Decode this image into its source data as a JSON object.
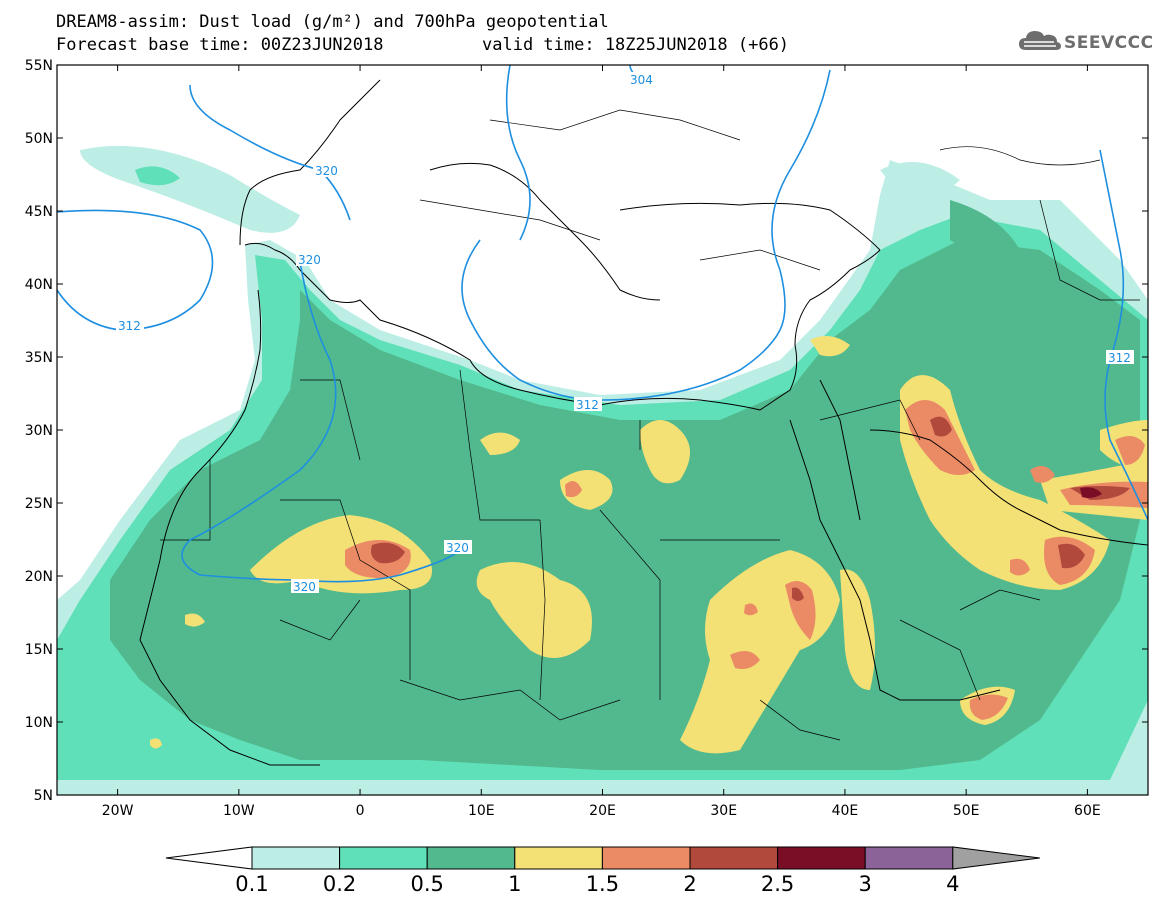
{
  "header": {
    "title_line1": "DREAM8-assim: Dust load (g/m²) and 700hPa geopotential",
    "title_line2": "Forecast base time: 00Z23JUN2018",
    "valid_time": "valid time: 18Z25JUN2018 (+66)"
  },
  "logo": {
    "text": "SEEVCCC",
    "icon": "cloud-logo-icon"
  },
  "map": {
    "lon_range": [
      -25,
      65
    ],
    "lat_range": [
      5,
      55
    ],
    "lat_ticks": [
      "55N",
      "50N",
      "45N",
      "40N",
      "35N",
      "30N",
      "25N",
      "20N",
      "15N",
      "10N",
      "5N"
    ],
    "lon_ticks": [
      "20W",
      "10W",
      "0",
      "10E",
      "20E",
      "30E",
      "40E",
      "50E",
      "60E"
    ],
    "contour_labels": [
      "304",
      "320",
      "320",
      "312",
      "312",
      "320",
      "320",
      "312"
    ]
  },
  "colorbar": {
    "levels": [
      "0.1",
      "0.2",
      "0.5",
      "1",
      "1.5",
      "2",
      "2.5",
      "3",
      "4"
    ],
    "colors": [
      "#bdeee6",
      "#5fe0b8",
      "#52b98e",
      "#f3e176",
      "#eb8b66",
      "#b2493d",
      "#7b0e27",
      "#8c6399",
      "#a0a0a0"
    ]
  },
  "colors": {
    "contour": "#1e8fe0",
    "coastline": "#000000"
  }
}
